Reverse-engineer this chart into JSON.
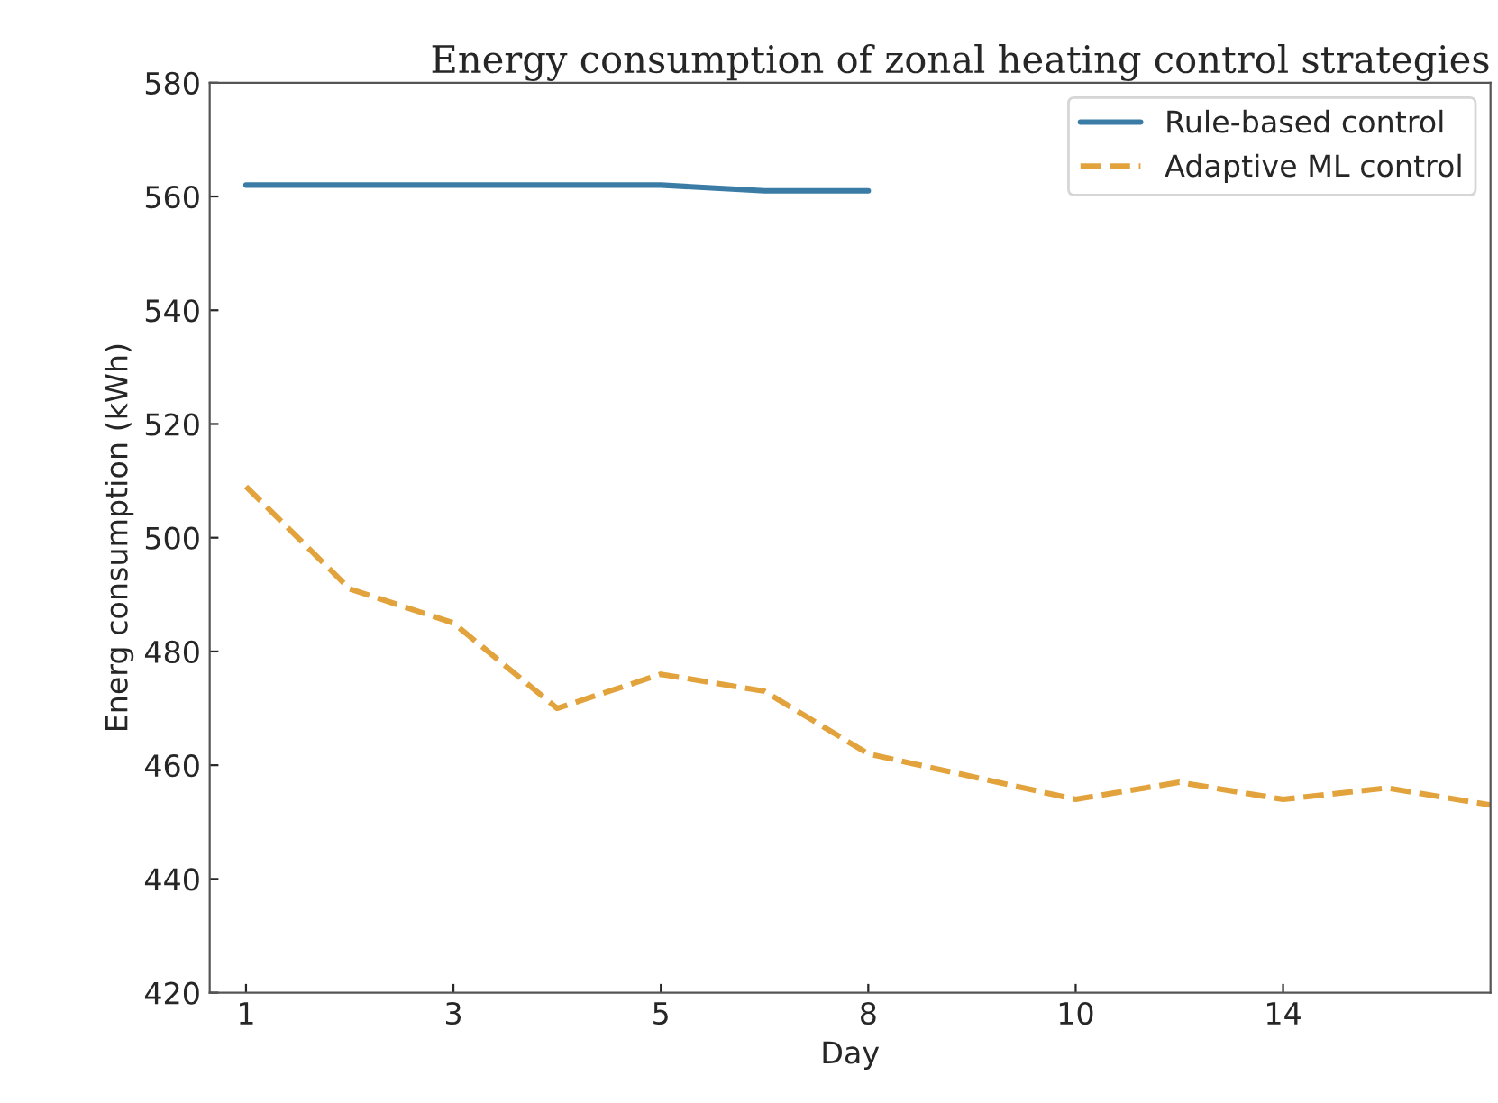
{
  "chart_data": {
    "type": "line",
    "title": "Energy consumption of zonal heating control strategies",
    "xlabel": "Day",
    "ylabel": "Energ consumption (kWh)",
    "categories": [
      "1",
      null,
      "3",
      null,
      "5",
      null,
      "8",
      null,
      "10",
      null,
      "14",
      null,
      null
    ],
    "series": [
      {
        "name": "Rule-based control",
        "color": "#3a7ca5",
        "line_style": "solid",
        "values": [
          562,
          562,
          562,
          562,
          562,
          561,
          561,
          null,
          null,
          null,
          null,
          null,
          null
        ]
      },
      {
        "name": "Adaptive ML control",
        "color": "#e3a33c",
        "line_style": "dashed",
        "values": [
          509,
          491,
          485,
          470,
          476,
          473,
          462,
          458,
          454,
          457,
          454,
          456,
          453
        ]
      }
    ],
    "ylim": [
      420,
      580
    ],
    "yticks": [
      420,
      440,
      460,
      480,
      500,
      520,
      540,
      560,
      580
    ],
    "grid": false,
    "legend": "top right",
    "marker": "none"
  }
}
